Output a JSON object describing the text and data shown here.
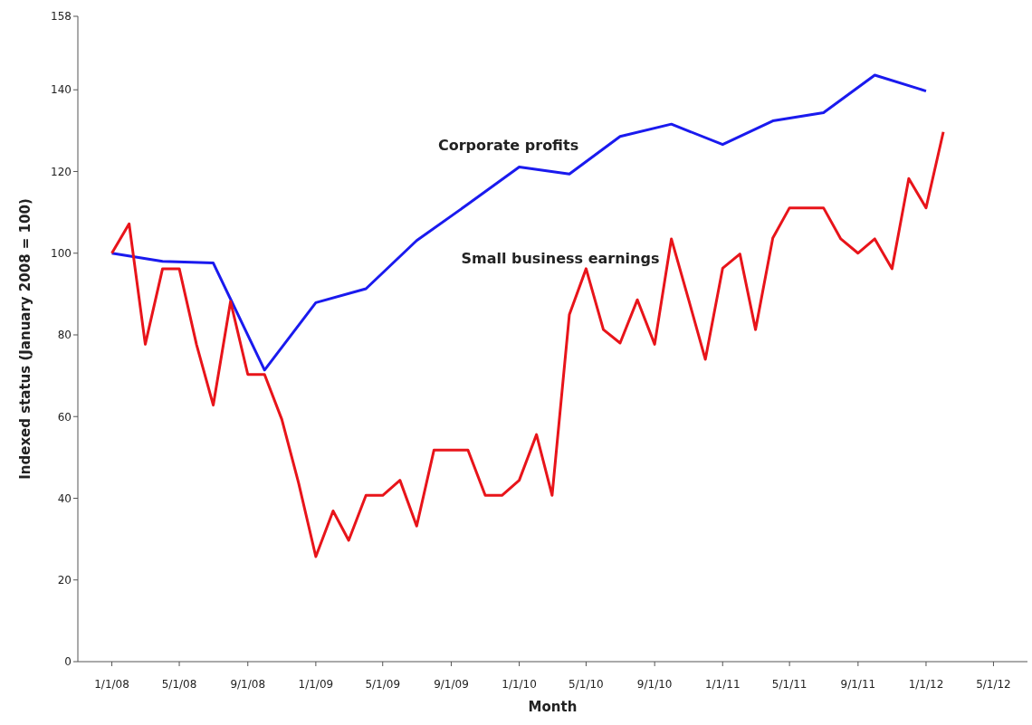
{
  "chart_data": {
    "type": "line",
    "xlabel": "Month",
    "ylabel": "Indexed status (January 2008 = 100)",
    "xlim": [
      "2007-11",
      "2012-07"
    ],
    "xticks": [
      {
        "value": "2008-01",
        "label": "1/1/08"
      },
      {
        "value": "2008-05",
        "label": "5/1/08"
      },
      {
        "value": "2008-09",
        "label": "9/1/08"
      },
      {
        "value": "2009-01",
        "label": "1/1/09"
      },
      {
        "value": "2009-05",
        "label": "5/1/09"
      },
      {
        "value": "2009-09",
        "label": "9/1/09"
      },
      {
        "value": "2010-01",
        "label": "1/1/10"
      },
      {
        "value": "2010-05",
        "label": "5/1/10"
      },
      {
        "value": "2010-09",
        "label": "9/1/10"
      },
      {
        "value": "2011-01",
        "label": "1/1/11"
      },
      {
        "value": "2011-05",
        "label": "5/1/11"
      },
      {
        "value": "2011-09",
        "label": "9/1/11"
      },
      {
        "value": "2012-01",
        "label": "1/1/12"
      },
      {
        "value": "2012-05",
        "label": "5/1/12"
      }
    ],
    "ylim": [
      0,
      158
    ],
    "yticks": [
      0,
      20,
      40,
      60,
      80,
      100,
      120,
      140,
      158
    ],
    "grid": false,
    "legend": false,
    "marker": "none",
    "line_style": "solid",
    "series": [
      {
        "name": "Corporate profits",
        "color": "#1a1aee",
        "x": [
          "2008-01",
          "2008-04",
          "2008-07",
          "2008-10",
          "2009-01",
          "2009-04",
          "2009-07",
          "2009-10",
          "2010-01",
          "2010-04",
          "2010-07",
          "2010-10",
          "2011-01",
          "2011-04",
          "2011-07",
          "2011-10",
          "2012-01"
        ],
        "values": [
          100,
          98,
          97.6,
          71.4,
          87.9,
          91.3,
          103.1,
          112,
          121.1,
          119.4,
          128.6,
          131.6,
          126.6,
          132.4,
          134.4,
          143.6,
          139.7
        ]
      },
      {
        "name": "Small business earnings",
        "color": "#e8141a",
        "x": [
          "2008-01",
          "2008-02",
          "2008-03",
          "2008-04",
          "2008-05",
          "2008-06",
          "2008-07",
          "2008-08",
          "2008-09",
          "2008-10",
          "2008-11",
          "2008-12",
          "2009-01",
          "2009-02",
          "2009-03",
          "2009-04",
          "2009-05",
          "2009-06",
          "2009-07",
          "2009-08",
          "2009-09",
          "2009-10",
          "2009-11",
          "2009-12",
          "2010-01",
          "2010-02",
          "2010-03",
          "2010-04",
          "2010-05",
          "2010-06",
          "2010-07",
          "2010-08",
          "2010-09",
          "2010-10",
          "2010-11",
          "2010-12",
          "2011-01",
          "2011-02",
          "2011-03",
          "2011-04",
          "2011-05",
          "2011-06",
          "2011-07",
          "2011-08",
          "2011-09",
          "2011-10",
          "2011-11",
          "2011-12",
          "2012-01",
          "2012-02"
        ],
        "values": [
          100,
          107.2,
          77.7,
          96.2,
          96.2,
          77.6,
          62.8,
          88.2,
          70.3,
          70.3,
          59.3,
          43.8,
          25.7,
          36.9,
          29.7,
          40.7,
          40.7,
          44.4,
          33.2,
          51.8,
          51.8,
          51.8,
          40.7,
          40.7,
          44.4,
          55.6,
          40.7,
          85,
          96.2,
          81.3,
          78,
          88.6,
          77.7,
          103.5,
          88.6,
          74,
          96.3,
          99.8,
          81.3,
          103.7,
          111.1,
          111.1,
          111.1,
          103.5,
          100,
          103.5,
          96.2,
          118.3,
          111.1,
          129.7
        ]
      }
    ]
  }
}
